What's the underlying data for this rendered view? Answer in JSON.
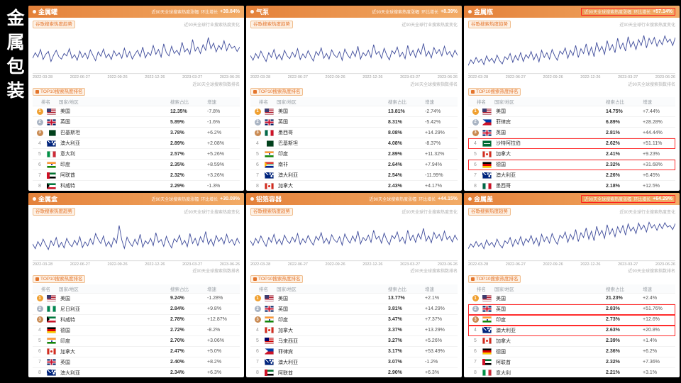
{
  "sidebar": {
    "title": "金属包装"
  },
  "shared": {
    "stat_label": "近90天全球搜索热度涨幅",
    "stat_growth_label": "环比增长",
    "trend_tag": "谷歌搜索热度趋势",
    "trend_note": "近90天全球行业搜索热度变化",
    "rank_note": "近90天全球搜索指数排名",
    "rank_tag": "TOP10搜索热度排名",
    "columns": [
      "排名",
      "国家/地区",
      "搜索占比",
      "增速"
    ]
  },
  "colors": {
    "accent": "#e4752c",
    "header_gradient_start": "#e4813a",
    "header_gradient_end": "#f2ab66",
    "line": "#3f4c9b",
    "highlight": "#ff2b2b"
  },
  "panels": [
    {
      "title": "金属罐",
      "stat_value": "+39.84%",
      "stat_highlight": false,
      "rows": [
        {
          "rank": 1,
          "flag": "us",
          "country": "美国",
          "share": "12.35%",
          "growth": "-7.8%",
          "highlight": false
        },
        {
          "rank": 2,
          "flag": "uk",
          "country": "英国",
          "share": "5.89%",
          "growth": "-1.6%",
          "highlight": false
        },
        {
          "rank": 3,
          "flag": "pk",
          "country": "巴基斯坦",
          "share": "3.78%",
          "growth": "+6.2%",
          "highlight": false
        },
        {
          "rank": 4,
          "flag": "au",
          "country": "澳大利亚",
          "share": "2.89%",
          "growth": "+2.08%",
          "highlight": false
        },
        {
          "rank": 5,
          "flag": "it",
          "country": "意大利",
          "share": "2.57%",
          "growth": "+5.26%",
          "highlight": false
        },
        {
          "rank": 6,
          "flag": "in",
          "country": "印度",
          "share": "2.35%",
          "growth": "+8.59%",
          "highlight": false
        },
        {
          "rank": 7,
          "flag": "ae",
          "country": "阿联酋",
          "share": "2.32%",
          "growth": "+3.26%",
          "highlight": false
        },
        {
          "rank": 8,
          "flag": "kw",
          "country": "科威特",
          "share": "2.29%",
          "growth": "-1.3%",
          "highlight": false
        }
      ]
    },
    {
      "title": "气泵",
      "stat_value": "+8.39%",
      "stat_highlight": false,
      "rows": [
        {
          "rank": 1,
          "flag": "us",
          "country": "美国",
          "share": "13.81%",
          "growth": "-2.74%",
          "highlight": false
        },
        {
          "rank": 2,
          "flag": "uk",
          "country": "英国",
          "share": "8.31%",
          "growth": "-5.42%",
          "highlight": false
        },
        {
          "rank": 3,
          "flag": "mx",
          "country": "墨西哥",
          "share": "8.08%",
          "growth": "+14.29%",
          "highlight": false
        },
        {
          "rank": 4,
          "flag": "pk",
          "country": "巴基斯坦",
          "share": "4.08%",
          "growth": "-8.37%",
          "highlight": false
        },
        {
          "rank": 5,
          "flag": "in",
          "country": "印度",
          "share": "2.89%",
          "growth": "+11.32%",
          "highlight": false
        },
        {
          "rank": 6,
          "flag": "za",
          "country": "南非",
          "share": "2.64%",
          "growth": "+7.94%",
          "highlight": false
        },
        {
          "rank": 7,
          "flag": "au",
          "country": "澳大利亚",
          "share": "2.54%",
          "growth": "-11.99%",
          "highlight": false
        },
        {
          "rank": 8,
          "flag": "ca",
          "country": "加拿大",
          "share": "2.43%",
          "growth": "+4.17%",
          "highlight": false
        }
      ]
    },
    {
      "title": "金属瓶",
      "stat_value": "+57.14%",
      "stat_highlight": true,
      "rows": [
        {
          "rank": 1,
          "flag": "us",
          "country": "美国",
          "share": "14.75%",
          "growth": "+7.44%",
          "highlight": false
        },
        {
          "rank": 2,
          "flag": "ph",
          "country": "菲律宾",
          "share": "6.89%",
          "growth": "+28.28%",
          "highlight": false
        },
        {
          "rank": 3,
          "flag": "uk",
          "country": "英国",
          "share": "2.81%",
          "growth": "+44.44%",
          "highlight": false
        },
        {
          "rank": 4,
          "flag": "sa",
          "country": "沙特阿拉伯",
          "share": "2.62%",
          "growth": "+51.11%",
          "highlight": true
        },
        {
          "rank": 5,
          "flag": "ca",
          "country": "加拿大",
          "share": "2.41%",
          "growth": "+9.23%",
          "highlight": false
        },
        {
          "rank": 6,
          "flag": "de",
          "country": "德国",
          "share": "2.32%",
          "growth": "+31.68%",
          "highlight": true
        },
        {
          "rank": 7,
          "flag": "au",
          "country": "澳大利亚",
          "share": "2.26%",
          "growth": "+6.45%",
          "highlight": false
        },
        {
          "rank": 8,
          "flag": "mx",
          "country": "墨西哥",
          "share": "2.18%",
          "growth": "+12.5%",
          "highlight": false
        }
      ]
    },
    {
      "title": "金属盒",
      "stat_value": "+30.09%",
      "stat_highlight": false,
      "rows": [
        {
          "rank": 1,
          "flag": "us",
          "country": "美国",
          "share": "9.24%",
          "growth": "-1.28%",
          "highlight": false
        },
        {
          "rank": 2,
          "flag": "ng",
          "country": "尼日利亚",
          "share": "2.84%",
          "growth": "+9.8%",
          "highlight": false
        },
        {
          "rank": 3,
          "flag": "kw",
          "country": "科威特",
          "share": "2.78%",
          "growth": "+12.87%",
          "highlight": false
        },
        {
          "rank": 4,
          "flag": "de",
          "country": "德国",
          "share": "2.72%",
          "growth": "-8.2%",
          "highlight": false
        },
        {
          "rank": 5,
          "flag": "in",
          "country": "印度",
          "share": "2.70%",
          "growth": "+3.06%",
          "highlight": false
        },
        {
          "rank": 6,
          "flag": "ca",
          "country": "加拿大",
          "share": "2.47%",
          "growth": "+5.0%",
          "highlight": false
        },
        {
          "rank": 7,
          "flag": "uk",
          "country": "英国",
          "share": "2.40%",
          "growth": "+8.2%",
          "highlight": false
        },
        {
          "rank": 8,
          "flag": "au",
          "country": "澳大利亚",
          "share": "2.34%",
          "growth": "+6.3%",
          "highlight": false
        }
      ]
    },
    {
      "title": "铝箔容器",
      "stat_value": "+44.15%",
      "stat_highlight": false,
      "rows": [
        {
          "rank": 1,
          "flag": "us",
          "country": "美国",
          "share": "13.77%",
          "growth": "+2.1%",
          "highlight": false
        },
        {
          "rank": 2,
          "flag": "uk",
          "country": "英国",
          "share": "3.81%",
          "growth": "+14.29%",
          "highlight": false
        },
        {
          "rank": 3,
          "flag": "in",
          "country": "印度",
          "share": "3.47%",
          "growth": "+7.37%",
          "highlight": false
        },
        {
          "rank": 4,
          "flag": "ca",
          "country": "加拿大",
          "share": "3.37%",
          "growth": "+13.29%",
          "highlight": false
        },
        {
          "rank": 5,
          "flag": "my",
          "country": "马来西亚",
          "share": "3.27%",
          "growth": "+5.26%",
          "highlight": false
        },
        {
          "rank": 6,
          "flag": "ph",
          "country": "菲律宾",
          "share": "3.17%",
          "growth": "+53.49%",
          "highlight": false
        },
        {
          "rank": 7,
          "flag": "au",
          "country": "澳大利亚",
          "share": "3.07%",
          "growth": "-1.2%",
          "highlight": false
        },
        {
          "rank": 8,
          "flag": "ae",
          "country": "阿联酋",
          "share": "2.90%",
          "growth": "+6.3%",
          "highlight": false
        }
      ]
    },
    {
      "title": "金属盖",
      "stat_value": "+64.29%",
      "stat_highlight": true,
      "rows": [
        {
          "rank": 1,
          "flag": "us",
          "country": "美国",
          "share": "21.23%",
          "growth": "+2.4%",
          "highlight": false
        },
        {
          "rank": 2,
          "flag": "uk",
          "country": "英国",
          "share": "2.83%",
          "growth": "+51.76%",
          "highlight": true
        },
        {
          "rank": 3,
          "flag": "in",
          "country": "印度",
          "share": "2.73%",
          "growth": "+12.6%",
          "highlight": true
        },
        {
          "rank": 4,
          "flag": "au",
          "country": "澳大利亚",
          "share": "2.63%",
          "growth": "+20.8%",
          "highlight": true
        },
        {
          "rank": 5,
          "flag": "ca",
          "country": "加拿大",
          "share": "2.39%",
          "growth": "+1.4%",
          "highlight": false
        },
        {
          "rank": 6,
          "flag": "de",
          "country": "德国",
          "share": "2.36%",
          "growth": "+6.2%",
          "highlight": false
        },
        {
          "rank": 7,
          "flag": "ae",
          "country": "阿联酋",
          "share": "2.32%",
          "growth": "+7.36%",
          "highlight": false
        },
        {
          "rank": 8,
          "flag": "it",
          "country": "意大利",
          "share": "2.21%",
          "growth": "+3.1%",
          "highlight": false
        }
      ]
    }
  ],
  "chart_data": [
    {
      "type": "line",
      "title": "金属罐 谷歌搜索热度趋势",
      "ylim": [
        0,
        100
      ],
      "x_labels": [
        "2022-03-28",
        "2022-06-27",
        "2022-09-26",
        "2022-12-26",
        "2023-03-27",
        "2023-06-26"
      ],
      "values": [
        38,
        52,
        41,
        60,
        35,
        48,
        55,
        30,
        46,
        58,
        42,
        36,
        50,
        44,
        62,
        38,
        47,
        33,
        56,
        40,
        51,
        37,
        59,
        45,
        32,
        54,
        43,
        61,
        39,
        49,
        35,
        57,
        44,
        52,
        38,
        63,
        41,
        55,
        36,
        48,
        58,
        42,
        66,
        39,
        53,
        45,
        70,
        48,
        60,
        41,
        74,
        52,
        44,
        68,
        50,
        58,
        46,
        78,
        54,
        62,
        48,
        85,
        56,
        66,
        50,
        72,
        58,
        90,
        62,
        76,
        54,
        70,
        60,
        82,
        57,
        74,
        63,
        68,
        55,
        66
      ]
    },
    {
      "type": "line",
      "title": "气泵 谷歌搜索热度趋势",
      "ylim": [
        0,
        100
      ],
      "x_labels": [
        "2022-03-28",
        "2022-06-27",
        "2022-09-26",
        "2022-12-26",
        "2023-03-27",
        "2023-06-26"
      ],
      "values": [
        45,
        33,
        50,
        38,
        56,
        42,
        30,
        52,
        40,
        60,
        36,
        48,
        34,
        58,
        44,
        37,
        53,
        41,
        62,
        35,
        49,
        39,
        57,
        43,
        31,
        55,
        45,
        64,
        38,
        50,
        36,
        59,
        46,
        40,
        54,
        33,
        61,
        47,
        38,
        56,
        42,
        68,
        36,
        52,
        44,
        58,
        40,
        72,
        48,
        55,
        38,
        63,
        46,
        34,
        57,
        49,
        66,
        42,
        53,
        37,
        70,
        45,
        58,
        40,
        62,
        48,
        75,
        43,
        56,
        39,
        65,
        50,
        60,
        44,
        68,
        47,
        55,
        41,
        58,
        45
      ]
    },
    {
      "type": "line",
      "title": "金属瓶 谷歌搜索热度趋势",
      "ylim": [
        0,
        100
      ],
      "x_labels": [
        "2022-03-28",
        "2022-06-27",
        "2022-09-26",
        "2022-12-26",
        "2023-03-27",
        "2023-06-26"
      ],
      "values": [
        20,
        34,
        25,
        40,
        28,
        36,
        22,
        44,
        30,
        38,
        26,
        46,
        32,
        24,
        42,
        35,
        50,
        28,
        45,
        33,
        52,
        30,
        47,
        38,
        55,
        34,
        49,
        29,
        58,
        40,
        52,
        36,
        60,
        44,
        33,
        56,
        48,
        64,
        38,
        58,
        45,
        70,
        40,
        62,
        50,
        74,
        46,
        66,
        42,
        78,
        55,
        68,
        48,
        82,
        58,
        72,
        52,
        88,
        62,
        76,
        56,
        92,
        66,
        80,
        60,
        85,
        70,
        95,
        64,
        88,
        74,
        90,
        68,
        84,
        72,
        94,
        78,
        86,
        70,
        90
      ]
    },
    {
      "type": "line",
      "title": "金属盒 谷歌搜索热度趋势",
      "ylim": [
        0,
        100
      ],
      "x_labels": [
        "2022-03-28",
        "2022-06-27",
        "2022-09-26",
        "2022-12-26",
        "2023-03-27",
        "2023-06-26"
      ],
      "values": [
        42,
        30,
        48,
        36,
        54,
        40,
        28,
        50,
        38,
        58,
        34,
        46,
        32,
        56,
        42,
        35,
        51,
        39,
        60,
        33,
        47,
        37,
        55,
        41,
        68,
        53,
        43,
        62,
        36,
        48,
        34,
        57,
        44,
        88,
        52,
        31,
        59,
        45,
        36,
        54,
        40,
        66,
        34,
        50,
        42,
        56,
        38,
        70,
        46,
        53,
        36,
        61,
        44,
        32,
        55,
        47,
        64,
        40,
        51,
        35,
        68,
        43,
        56,
        38,
        60,
        46,
        73,
        41,
        54,
        37,
        63,
        48,
        58,
        42,
        66,
        45,
        53,
        39,
        56,
        43
      ]
    },
    {
      "type": "line",
      "title": "铝箔容器 谷歌搜索热度趋势",
      "ylim": [
        0,
        100
      ],
      "x_labels": [
        "2022-03-28",
        "2022-06-27",
        "2022-09-26",
        "2022-12-26",
        "2023-03-27",
        "2023-06-26"
      ],
      "values": [
        50,
        38,
        56,
        44,
        62,
        48,
        36,
        58,
        46,
        66,
        42,
        54,
        40,
        64,
        50,
        43,
        59,
        47,
        68,
        41,
        55,
        45,
        63,
        49,
        39,
        61,
        51,
        70,
        44,
        56,
        42,
        65,
        52,
        46,
        60,
        39,
        67,
        53,
        44,
        62,
        48,
        74,
        42,
        58,
        50,
        64,
        46,
        76,
        54,
        61,
        44,
        69,
        52,
        40,
        63,
        55,
        72,
        48,
        59,
        43,
        76,
        51,
        64,
        46,
        68,
        54,
        81,
        49,
        62,
        45,
        71,
        56,
        66,
        50,
        74,
        53,
        61,
        47,
        64,
        51
      ]
    },
    {
      "type": "line",
      "title": "金属盖 谷歌搜索热度趋势",
      "ylim": [
        0,
        100
      ],
      "x_labels": [
        "2022-03-28",
        "2022-06-27",
        "2022-09-26",
        "2022-12-26",
        "2023-03-27",
        "2023-06-26"
      ],
      "values": [
        30,
        42,
        34,
        48,
        36,
        44,
        30,
        52,
        38,
        46,
        34,
        54,
        40,
        32,
        50,
        43,
        58,
        36,
        53,
        41,
        60,
        38,
        55,
        46,
        63,
        42,
        57,
        37,
        66,
        48,
        60,
        44,
        68,
        52,
        41,
        64,
        56,
        72,
        46,
        66,
        53,
        78,
        48,
        70,
        58,
        82,
        54,
        74,
        50,
        86,
        63,
        76,
        56,
        90,
        66,
        80,
        60,
        85,
        70,
        88,
        64,
        92,
        74,
        84,
        68,
        94,
        78,
        89,
        72,
        96,
        82,
        90,
        76,
        92,
        80,
        95,
        84,
        88,
        78,
        93
      ]
    }
  ]
}
